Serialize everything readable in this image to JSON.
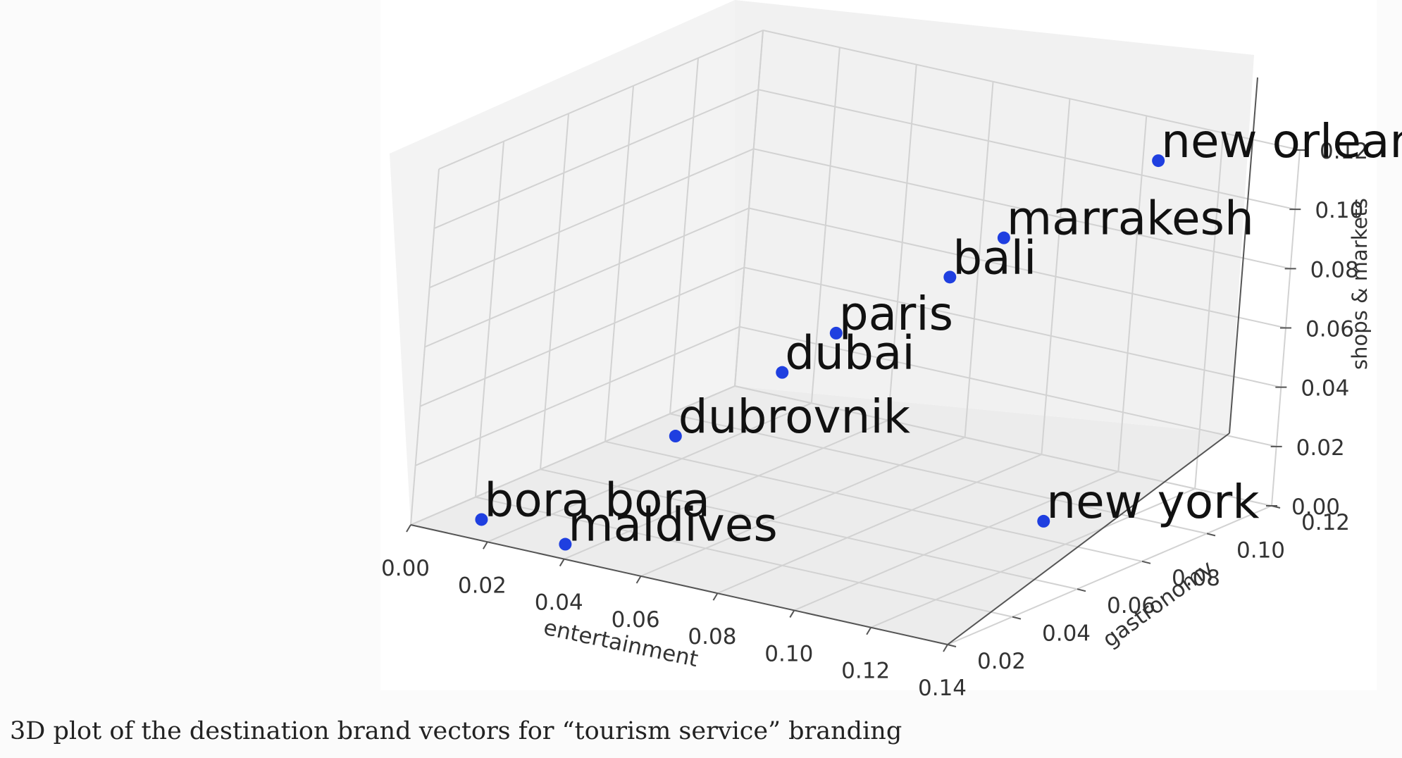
{
  "caption": "3D plot of the destination brand vectors for “tourism service” branding",
  "chart_data": {
    "type": "scatter3d",
    "title": "",
    "xlabel": "entertainment",
    "ylabel": "gastronomy",
    "zlabel": "shops & markets",
    "xlim": [
      0.0,
      0.14
    ],
    "ylim": [
      0.02,
      0.12
    ],
    "zlim": [
      0.0,
      0.12
    ],
    "x_ticks": [
      "0.00",
      "0.02",
      "0.04",
      "0.06",
      "0.08",
      "0.10",
      "0.12",
      "0.14"
    ],
    "y_ticks": [
      "0.02",
      "0.04",
      "0.06",
      "0.08",
      "0.10",
      "0.12"
    ],
    "z_ticks": [
      "0.00",
      "0.02",
      "0.04",
      "0.06",
      "0.08",
      "0.10",
      "0.12"
    ],
    "grid": true,
    "point_color": "#1f3fe0",
    "points": [
      {
        "label": "new orleans",
        "x": 0.12,
        "y": 0.1,
        "z": 0.12
      },
      {
        "label": "marrakesh",
        "x": 0.09,
        "y": 0.09,
        "z": 0.09
      },
      {
        "label": "bali",
        "x": 0.085,
        "y": 0.08,
        "z": 0.08
      },
      {
        "label": "paris",
        "x": 0.065,
        "y": 0.07,
        "z": 0.06
      },
      {
        "label": "dubai",
        "x": 0.06,
        "y": 0.06,
        "z": 0.05
      },
      {
        "label": "dubrovnik",
        "x": 0.05,
        "y": 0.04,
        "z": 0.035
      },
      {
        "label": "new york",
        "x": 0.13,
        "y": 0.06,
        "z": 0.02
      },
      {
        "label": "maldives",
        "x": 0.04,
        "y": 0.02,
        "z": 0.005
      },
      {
        "label": "bora bora",
        "x": 0.01,
        "y": 0.03,
        "z": 0.0
      }
    ]
  }
}
